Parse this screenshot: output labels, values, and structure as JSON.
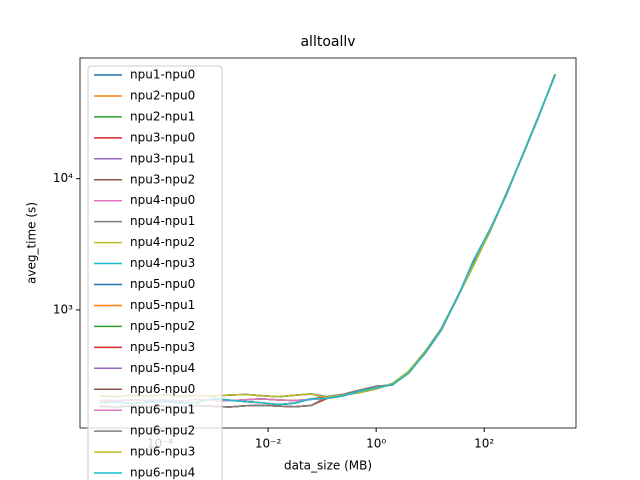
{
  "chart_data": {
    "type": "line",
    "title": "alltoallv",
    "x_label": "data_size (MB)",
    "y_label": "aveg_time (s)",
    "xscale": "log",
    "yscale": "log",
    "legend": "upper left",
    "xlim": [
      3.3e-06,
      5000
    ],
    "ylim": [
      126,
      83000
    ],
    "xticks": [
      {
        "value": 0.0001,
        "label": "10⁻⁴"
      },
      {
        "value": 0.01,
        "label": "10⁻²"
      },
      {
        "value": 1,
        "label": "10⁰"
      },
      {
        "value": 100,
        "label": "10²"
      }
    ],
    "yticks": [
      {
        "value": 1000,
        "label": "10³"
      },
      {
        "value": 10000,
        "label": "10⁴"
      }
    ],
    "x": [
      7.62939453125e-06,
      1.52587890625e-05,
      3.0517578125e-05,
      6.103515625e-05,
      0.0001220703125,
      0.000244140625,
      0.00048828125,
      0.0009765625,
      0.001953125,
      0.00390625,
      0.0078125,
      0.015625,
      0.03125,
      0.0625,
      0.125,
      0.25,
      0.5,
      1,
      2,
      4,
      8,
      16,
      32,
      64,
      128,
      256,
      512,
      1024,
      2048
    ],
    "series": [
      {
        "name": "npu1-npu0",
        "color": "#1f77b4",
        "values": [
          205,
          203,
          207,
          204,
          206,
          202,
          208,
          205,
          203,
          207,
          210,
          206,
          204,
          208,
          215,
          225,
          235,
          250,
          275,
          340,
          480,
          720,
          1250,
          2200,
          4000,
          7600,
          15000,
          30000,
          62000
        ]
      },
      {
        "name": "npu2-npu0",
        "color": "#ff7f0e",
        "values": [
          184,
          182,
          186,
          183,
          185,
          181,
          187,
          184,
          182,
          186,
          188,
          185,
          183,
          187,
          212,
          222,
          240,
          255,
          270,
          330,
          470,
          710,
          1240,
          2400,
          4100,
          7500,
          15100,
          30200,
          61500
        ]
      },
      {
        "name": "npu2-npu1",
        "color": "#2ca02c",
        "values": [
          222,
          218,
          224,
          220,
          226,
          219,
          223,
          221,
          225,
          227,
          222,
          218,
          224,
          229,
          218,
          228,
          245,
          262,
          268,
          335,
          465,
          700,
          1260,
          2250,
          3950,
          7700,
          14900,
          29800,
          62500
        ]
      },
      {
        "name": "npu3-npu0",
        "color": "#d62728",
        "values": [
          196,
          199,
          194,
          198,
          201,
          195,
          197,
          212,
          205,
          200,
          196,
          190,
          195,
          210,
          215,
          225,
          235,
          250,
          275,
          340,
          480,
          720,
          1250,
          2200,
          4000,
          7600,
          15000,
          30000,
          62000
        ]
      },
      {
        "name": "npu3-npu1",
        "color": "#9467bd",
        "values": [
          205,
          203,
          207,
          204,
          206,
          202,
          208,
          205,
          203,
          207,
          210,
          206,
          204,
          208,
          212,
          222,
          240,
          255,
          270,
          330,
          470,
          710,
          1240,
          2400,
          4100,
          7500,
          15100,
          30200,
          61500
        ]
      },
      {
        "name": "npu3-npu2",
        "color": "#8c564b",
        "values": [
          184,
          182,
          186,
          183,
          185,
          181,
          187,
          184,
          182,
          186,
          188,
          185,
          183,
          187,
          218,
          228,
          245,
          262,
          268,
          335,
          465,
          700,
          1260,
          2250,
          3950,
          7700,
          14900,
          29800,
          62500
        ]
      },
      {
        "name": "npu4-npu0",
        "color": "#e377c2",
        "values": [
          222,
          218,
          224,
          220,
          226,
          219,
          223,
          221,
          225,
          227,
          222,
          218,
          224,
          229,
          215,
          225,
          235,
          250,
          275,
          340,
          480,
          720,
          1250,
          2200,
          4000,
          7600,
          15000,
          30000,
          62000
        ]
      },
      {
        "name": "npu4-npu1",
        "color": "#7f7f7f",
        "values": [
          196,
          199,
          194,
          198,
          201,
          195,
          197,
          212,
          205,
          200,
          196,
          190,
          195,
          210,
          212,
          222,
          240,
          255,
          270,
          330,
          470,
          710,
          1240,
          2400,
          4100,
          7500,
          15100,
          30200,
          61500
        ]
      },
      {
        "name": "npu4-npu2",
        "color": "#bcbd22",
        "values": [
          205,
          203,
          207,
          204,
          206,
          202,
          208,
          205,
          203,
          207,
          210,
          206,
          204,
          208,
          218,
          228,
          245,
          262,
          268,
          335,
          465,
          700,
          1260,
          2250,
          3950,
          7700,
          14900,
          29800,
          62500
        ]
      },
      {
        "name": "npu4-npu3",
        "color": "#17becf",
        "values": [
          184,
          182,
          186,
          183,
          185,
          181,
          187,
          184,
          182,
          186,
          188,
          185,
          183,
          187,
          215,
          225,
          235,
          250,
          275,
          340,
          480,
          720,
          1250,
          2200,
          4000,
          7600,
          15000,
          30000,
          62000
        ]
      },
      {
        "name": "npu5-npu0",
        "color": "#1f77b4",
        "values": [
          222,
          218,
          224,
          220,
          226,
          219,
          223,
          221,
          225,
          227,
          222,
          218,
          224,
          229,
          212,
          222,
          240,
          255,
          270,
          330,
          470,
          710,
          1240,
          2400,
          4100,
          7500,
          15100,
          30200,
          61500
        ]
      },
      {
        "name": "npu5-npu1",
        "color": "#ff7f0e",
        "values": [
          196,
          199,
          194,
          198,
          201,
          195,
          197,
          212,
          205,
          200,
          196,
          190,
          195,
          210,
          218,
          228,
          245,
          262,
          268,
          335,
          465,
          700,
          1260,
          2250,
          3950,
          7700,
          14900,
          29800,
          62500
        ]
      },
      {
        "name": "npu5-npu2",
        "color": "#2ca02c",
        "values": [
          205,
          203,
          207,
          204,
          206,
          202,
          208,
          205,
          203,
          207,
          210,
          206,
          204,
          208,
          215,
          225,
          235,
          250,
          275,
          340,
          480,
          720,
          1250,
          2200,
          4000,
          7600,
          15000,
          30000,
          62000
        ]
      },
      {
        "name": "npu5-npu3",
        "color": "#d62728",
        "values": [
          184,
          182,
          186,
          183,
          185,
          181,
          187,
          184,
          182,
          186,
          188,
          185,
          183,
          187,
          212,
          222,
          240,
          255,
          270,
          330,
          470,
          710,
          1240,
          2400,
          4100,
          7500,
          15100,
          30200,
          61500
        ]
      },
      {
        "name": "npu5-npu4",
        "color": "#9467bd",
        "values": [
          222,
          218,
          224,
          220,
          226,
          219,
          223,
          221,
          225,
          227,
          222,
          218,
          224,
          229,
          218,
          228,
          245,
          262,
          268,
          335,
          465,
          700,
          1260,
          2250,
          3950,
          7700,
          14900,
          29800,
          62500
        ]
      },
      {
        "name": "npu6-npu0",
        "color": "#8c564b",
        "values": [
          196,
          199,
          194,
          198,
          201,
          195,
          197,
          212,
          205,
          200,
          196,
          190,
          195,
          210,
          215,
          225,
          235,
          250,
          275,
          340,
          480,
          720,
          1250,
          2200,
          4000,
          7600,
          15000,
          30000,
          62000
        ]
      },
      {
        "name": "npu6-npu1",
        "color": "#e377c2",
        "values": [
          205,
          203,
          207,
          204,
          206,
          202,
          208,
          205,
          203,
          207,
          210,
          206,
          204,
          208,
          212,
          222,
          240,
          255,
          270,
          330,
          470,
          710,
          1240,
          2400,
          4100,
          7500,
          15100,
          30200,
          61500
        ]
      },
      {
        "name": "npu6-npu2",
        "color": "#7f7f7f",
        "values": [
          184,
          182,
          186,
          183,
          185,
          181,
          187,
          184,
          182,
          186,
          188,
          185,
          183,
          187,
          218,
          228,
          245,
          262,
          268,
          335,
          465,
          700,
          1260,
          2250,
          3950,
          7700,
          14900,
          29800,
          62500
        ]
      },
      {
        "name": "npu6-npu3",
        "color": "#bcbd22",
        "values": [
          222,
          218,
          224,
          220,
          226,
          219,
          223,
          221,
          225,
          227,
          222,
          218,
          224,
          229,
          215,
          225,
          235,
          250,
          275,
          340,
          480,
          720,
          1250,
          2200,
          4000,
          7600,
          15000,
          30000,
          62000
        ]
      },
      {
        "name": "npu6-npu4",
        "color": "#17becf",
        "values": [
          196,
          199,
          194,
          198,
          201,
          195,
          197,
          212,
          205,
          200,
          196,
          190,
          195,
          210,
          212,
          222,
          240,
          255,
          270,
          330,
          470,
          710,
          1240,
          2400,
          4100,
          7500,
          15100,
          30200,
          61500
        ]
      }
    ]
  }
}
